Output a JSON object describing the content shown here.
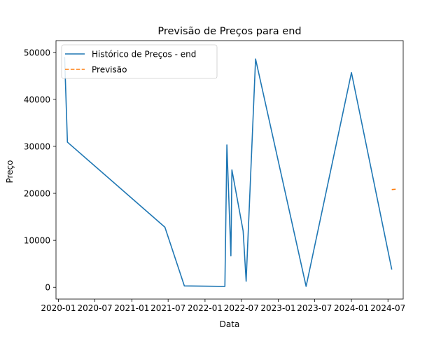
{
  "chart_data": {
    "type": "line",
    "title": "Previsão de Preços para end",
    "xlabel": "Data",
    "ylabel": "Preço",
    "xlim": [
      "2019-12-20",
      "2024-09-15"
    ],
    "ylim": [
      -2500,
      52500
    ],
    "x_ticks": [
      {
        "date": "2020-01-01",
        "label": "2020-01"
      },
      {
        "date": "2020-07-01",
        "label": "2020-07"
      },
      {
        "date": "2021-01-01",
        "label": "2021-01"
      },
      {
        "date": "2021-07-01",
        "label": "2021-07"
      },
      {
        "date": "2022-01-01",
        "label": "2022-01"
      },
      {
        "date": "2022-07-01",
        "label": "2022-07"
      },
      {
        "date": "2023-01-01",
        "label": "2023-01"
      },
      {
        "date": "2023-07-01",
        "label": "2023-07"
      },
      {
        "date": "2024-01-01",
        "label": "2024-01"
      },
      {
        "date": "2024-07-01",
        "label": "2024-07"
      }
    ],
    "y_ticks": [
      {
        "value": 0,
        "label": "0"
      },
      {
        "value": 10000,
        "label": "10000"
      },
      {
        "value": 20000,
        "label": "20000"
      },
      {
        "value": 30000,
        "label": "30000"
      },
      {
        "value": 40000,
        "label": "40000"
      },
      {
        "value": 50000,
        "label": "50000"
      }
    ],
    "grid": false,
    "legend_position": "top-left",
    "series": [
      {
        "name": "Histórico de Preços - end",
        "color": "#1f77b4",
        "style": "solid",
        "points": [
          {
            "x": "2020-02-01",
            "y": 49000
          },
          {
            "x": "2020-02-15",
            "y": 30900
          },
          {
            "x": "2021-06-15",
            "y": 12800
          },
          {
            "x": "2021-09-20",
            "y": 300
          },
          {
            "x": "2022-04-10",
            "y": 200
          },
          {
            "x": "2022-04-20",
            "y": 30300
          },
          {
            "x": "2022-05-10",
            "y": 6700
          },
          {
            "x": "2022-05-15",
            "y": 25000
          },
          {
            "x": "2022-07-10",
            "y": 12000
          },
          {
            "x": "2022-07-25",
            "y": 1300
          },
          {
            "x": "2022-09-10",
            "y": 48600
          },
          {
            "x": "2023-05-20",
            "y": 200
          },
          {
            "x": "2024-01-01",
            "y": 45700
          },
          {
            "x": "2024-07-20",
            "y": 3800
          }
        ]
      },
      {
        "name": "Previsão",
        "color": "#ff7f0e",
        "style": "dashed",
        "points": [
          {
            "x": "2024-07-20",
            "y": 20800
          },
          {
            "x": "2024-08-15",
            "y": 20900
          }
        ]
      }
    ]
  }
}
